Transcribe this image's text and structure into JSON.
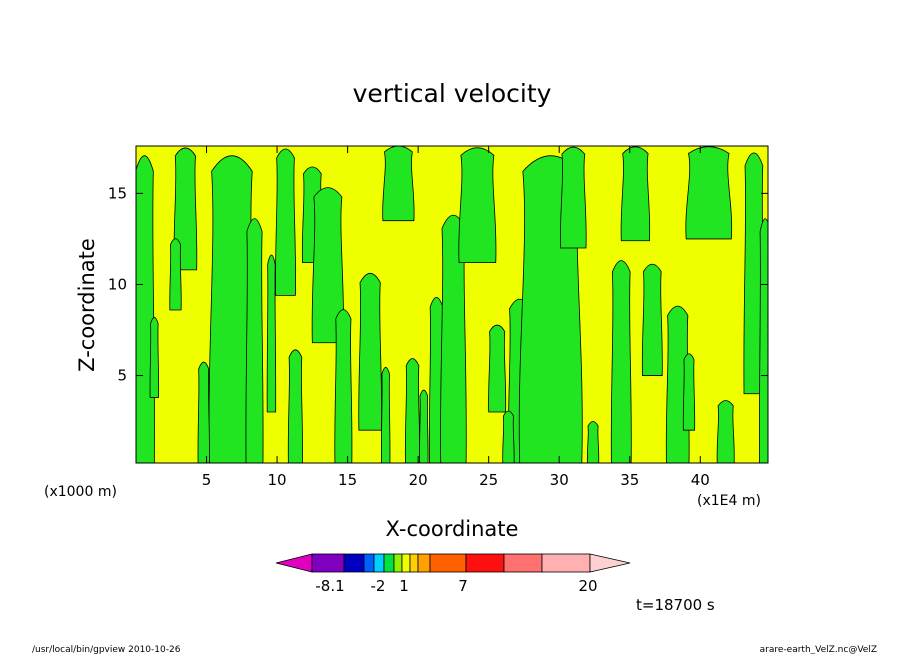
{
  "chart_data": {
    "type": "heatmap",
    "title": "vertical velocity",
    "xlabel": "X-coordinate",
    "ylabel": "Z-coordinate",
    "x_unit": "(x1E4 m)",
    "y_unit": "(x1000 m)",
    "xlim": [
      0,
      44.8
    ],
    "ylim": [
      0.2,
      17.6
    ],
    "x_ticks": [
      5,
      10,
      15,
      20,
      25,
      30,
      35,
      40
    ],
    "y_ticks": [
      5,
      10,
      15
    ],
    "x_tick_labels": [
      "5",
      "10",
      "15",
      "20",
      "25",
      "30",
      "35",
      "40"
    ],
    "y_tick_labels": [
      "5",
      "10",
      "15"
    ],
    "colors": {
      "positive": "#f0ff00",
      "negative": "#22e522"
    },
    "grid": false,
    "colorbar": {
      "colors": [
        "#e000c0",
        "#8000c0",
        "#0000c0",
        "#0060ff",
        "#00d0ff",
        "#00e040",
        "#90f000",
        "#f0ff00",
        "#ffd000",
        "#ffa000",
        "#ff6000",
        "#ff1010",
        "#ff7070",
        "#ffb0b0",
        "#ffd0d0"
      ],
      "labels": [
        "-8.1",
        "-2",
        "1",
        "7",
        "20"
      ]
    },
    "time": "t=18700 s"
  },
  "footer": {
    "left": "/usr/local/bin/gpview   2010-10-26",
    "right": "arare-earth_VelZ.nc@VelZ"
  }
}
